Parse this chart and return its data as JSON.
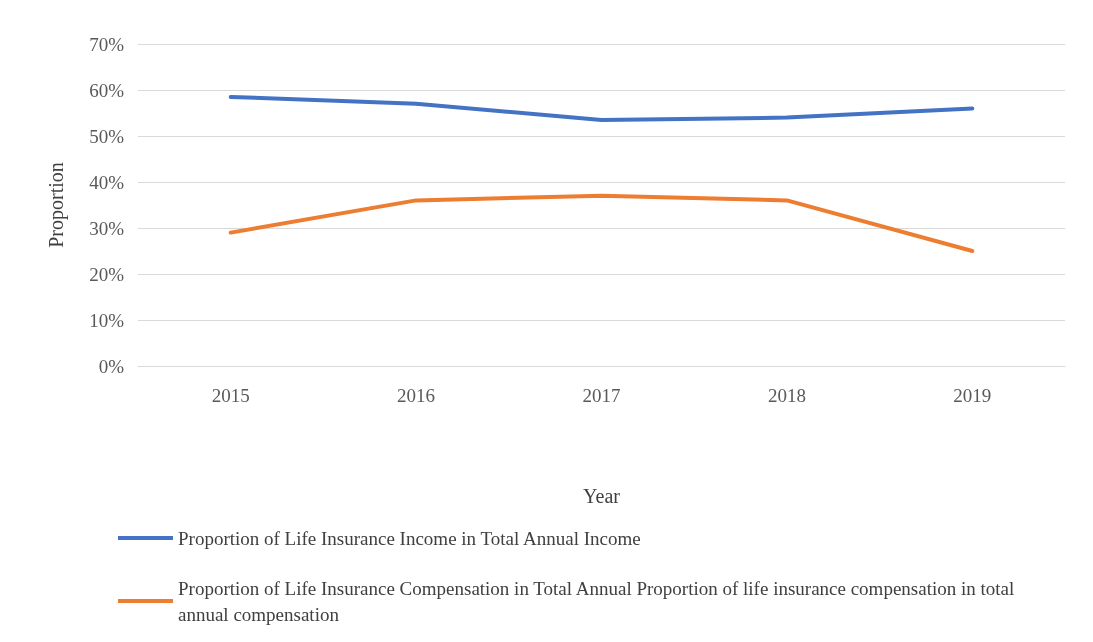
{
  "chart_data": {
    "type": "line",
    "xlabel": "Year",
    "ylabel": "Proportion",
    "categories": [
      "2015",
      "2016",
      "2017",
      "2018",
      "2019"
    ],
    "series": [
      {
        "name": "Proportion of Life Insurance Income in Total Annual Income",
        "color": "#4472c4",
        "values": [
          58.5,
          57,
          53.5,
          54,
          56
        ]
      },
      {
        "name": "Proportion of Life Insurance Compensation in Total Annual Proportion of life insurance compensation in total annual compensation",
        "color": "#ed7d31",
        "values": [
          29,
          36,
          37,
          36,
          25
        ]
      }
    ],
    "ylim": [
      0,
      70
    ],
    "yticks": [
      {
        "value": 0,
        "label": "0%"
      },
      {
        "value": 10,
        "label": "10%"
      },
      {
        "value": 20,
        "label": "20%"
      },
      {
        "value": 30,
        "label": "30%"
      },
      {
        "value": 40,
        "label": "40%"
      },
      {
        "value": 50,
        "label": "50%"
      },
      {
        "value": 60,
        "label": "60%"
      },
      {
        "value": 70,
        "label": "70%"
      }
    ],
    "grid": "y",
    "legend": "bottom",
    "marker": "none",
    "line_style": "solid"
  }
}
